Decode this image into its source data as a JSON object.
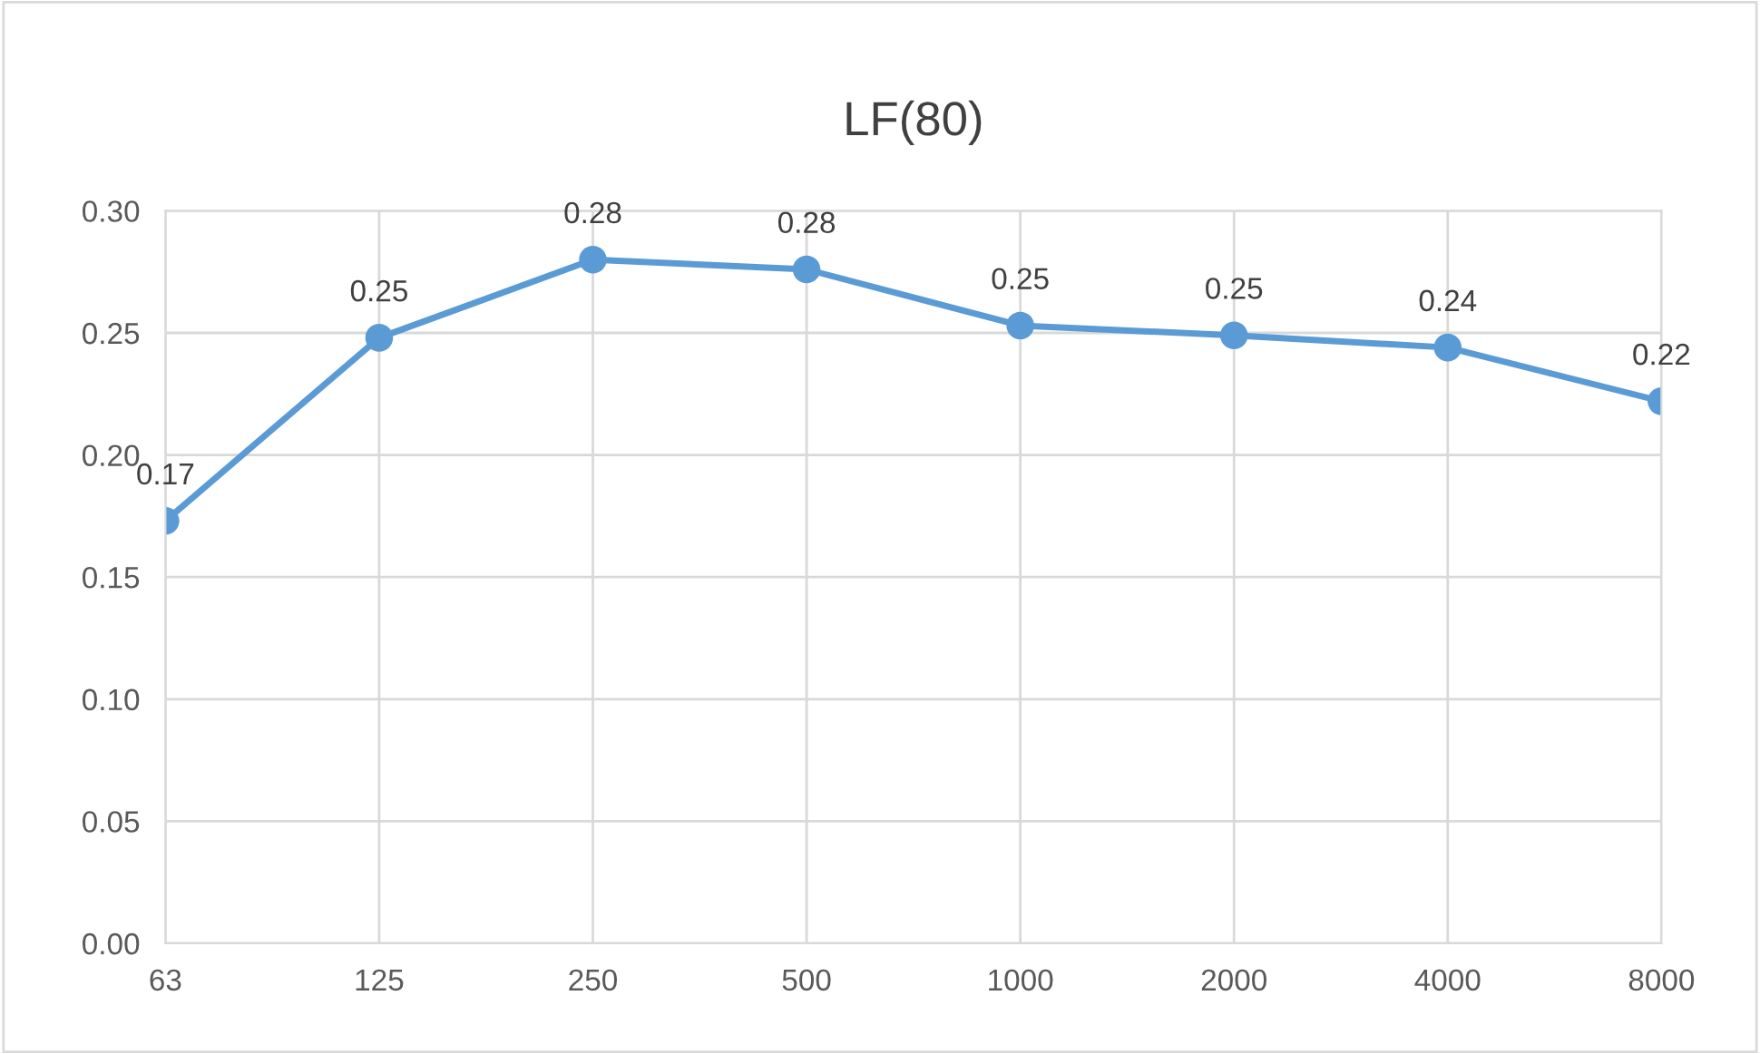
{
  "chart_data": {
    "type": "line",
    "title": "LF(80)",
    "categories": [
      "63",
      "125",
      "250",
      "500",
      "1000",
      "2000",
      "4000",
      "8000"
    ],
    "series": [
      {
        "color": "#5b9bd5",
        "values": [
          0.173,
          0.248,
          0.28,
          0.276,
          0.253,
          0.249,
          0.244,
          0.222
        ],
        "value_labels": [
          "0.17",
          "0.25",
          "0.28",
          "0.28",
          "0.25",
          "0.25",
          "0.24",
          "0.22"
        ]
      }
    ],
    "ylim": [
      0,
      0.3
    ],
    "yticks": [
      {
        "value": 0,
        "label": "0.00"
      },
      {
        "value": 0.05,
        "label": "0.05"
      },
      {
        "value": 0.1,
        "label": "0.10"
      },
      {
        "value": 0.15,
        "label": "0.15"
      },
      {
        "value": 0.2,
        "label": "0.20"
      },
      {
        "value": 0.25,
        "label": "0.25"
      },
      {
        "value": 0.3,
        "label": "0.30"
      }
    ],
    "grid": true,
    "marker": "circle",
    "line_style": "solid",
    "legend": false
  }
}
